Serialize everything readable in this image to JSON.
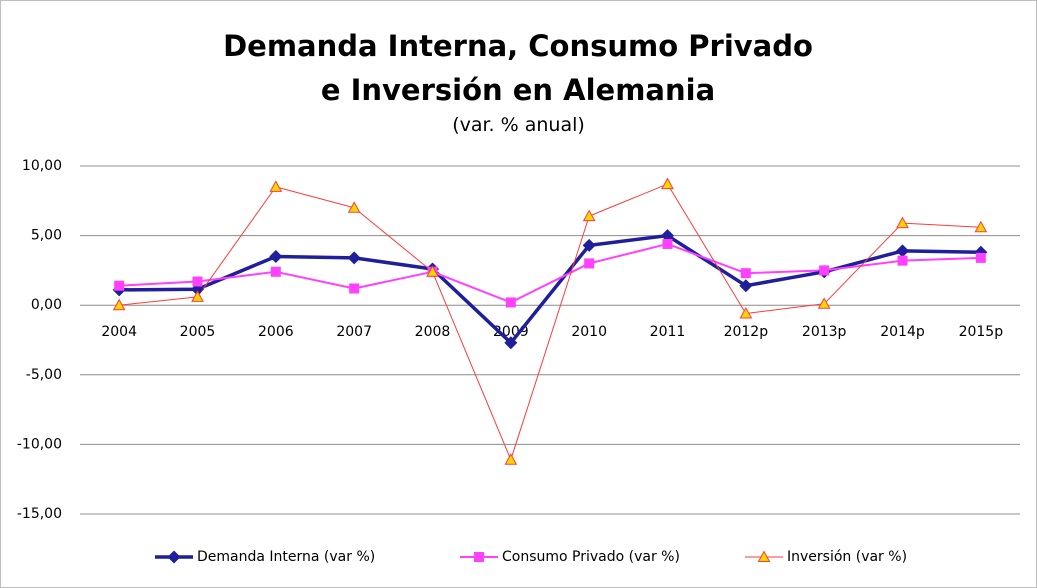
{
  "chart_data": {
    "type": "line",
    "title": "Demanda Interna, Consumo Privado e Inversión en Alemania",
    "subtitle": "(var. % anual)",
    "categories": [
      "2004",
      "2005",
      "2006",
      "2007",
      "2008",
      "2009",
      "2010",
      "2011",
      "2012p",
      "2013p",
      "2014p",
      "2015p"
    ],
    "series": [
      {
        "name": "Demanda Interna (var %)",
        "color": "#1f1f9c",
        "marker": "diamond",
        "values": [
          1.1,
          1.15,
          3.5,
          3.4,
          2.6,
          -2.7,
          4.3,
          5.0,
          1.4,
          2.4,
          3.9,
          3.8
        ]
      },
      {
        "name": "Consumo Privado (var %)",
        "color": "#ff40ff",
        "marker": "square",
        "values": [
          1.4,
          1.7,
          2.4,
          1.2,
          2.4,
          0.2,
          3.0,
          4.4,
          2.3,
          2.5,
          3.2,
          3.4
        ]
      },
      {
        "name": "Inversión (var %)",
        "color": "#ff3b3b",
        "marker": "triangle",
        "marker_fill": "#ffd700",
        "values": [
          0.0,
          0.6,
          8.5,
          7.0,
          2.4,
          -11.1,
          6.4,
          8.7,
          -0.6,
          0.1,
          5.9,
          5.6
        ]
      }
    ],
    "ylim": [
      -15,
      10
    ],
    "yticks": [
      {
        "value": -15,
        "label": "-15,00"
      },
      {
        "value": -10,
        "label": "-10,00"
      },
      {
        "value": -5,
        "label": "-5,00"
      },
      {
        "value": 0,
        "label": "0,00"
      },
      {
        "value": 5,
        "label": "5,00"
      },
      {
        "value": 10,
        "label": "10,00"
      }
    ],
    "grid": true,
    "legend": "bottom"
  }
}
